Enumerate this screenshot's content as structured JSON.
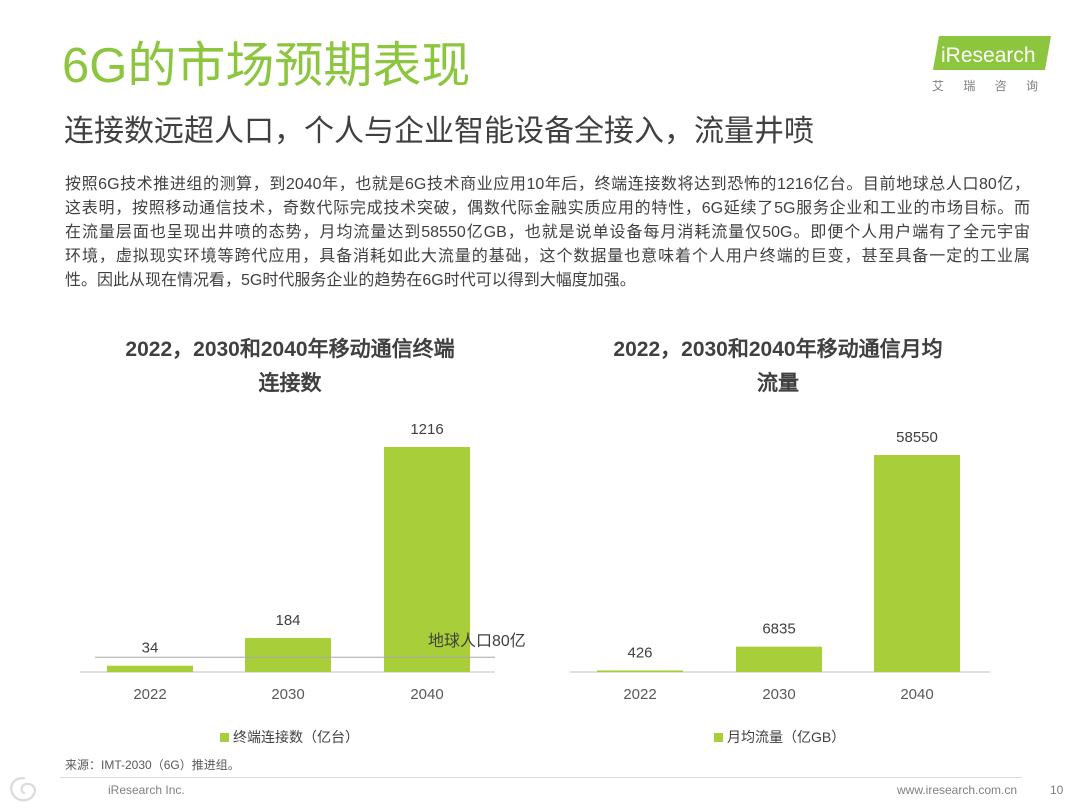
{
  "header": {
    "title": "6G的市场预期表现",
    "subtitle": "连接数远超人口，个人与企业智能设备全接入，流量井喷"
  },
  "logo": {
    "brand": "iResearch",
    "brand_cn": "艾 瑞 咨 询"
  },
  "intro": {
    "lines": [
      "按照6G技术推进组的测算，到2040年，也就是6G技术商业应用10年后，终端连接数将达到恐怖的1216亿台。目前地球总人口80亿，",
      "这表明，按照移动通信技术，奇数代际完成技术突破，偶数代际金融实质应用的特性，6G延续了5G服务企业和工业的市场目标。而",
      "在流量层面也呈现出井喷的态势，月均流量达到58550亿GB，也就是说单设备每月消耗流量仅50G。即便个人用户端有了全元宇宙",
      "环境，虚拟现实环境等跨代应用，具备消耗如此大流量的基础，这个数据量也意味着个人用户终端的巨变，甚至具备一定的工业属",
      "性。因此从现在情况看，5G时代服务企业的趋势在6G时代可以得到大幅度加强。"
    ]
  },
  "colors": {
    "title": "#8cc63e",
    "bar": "#a8cf3a",
    "axis": "#bfbfbf",
    "reference_line": "#a6a6a6",
    "logo": "#8cc63e"
  },
  "chart_data": [
    {
      "type": "bar",
      "title_lines": [
        "2022，2030和2040年移动通信终端",
        "连接数"
      ],
      "categories": [
        "2022",
        "2030",
        "2040"
      ],
      "values": [
        34,
        184,
        1216
      ],
      "series_name": "终端连接数（亿台）",
      "reference_line": {
        "value": 80,
        "label": "地球人口80亿"
      },
      "legend_position": "bottom",
      "grid": false
    },
    {
      "type": "bar",
      "title_lines": [
        "2022，2030和2040年移动通信月均",
        "流量"
      ],
      "categories": [
        "2022",
        "2030",
        "2040"
      ],
      "values": [
        426,
        6835,
        58550
      ],
      "series_name": "月均流量（亿GB）",
      "legend_position": "bottom",
      "grid": false
    }
  ],
  "source": "来源：IMT-2030（6G）推进组。",
  "footer": {
    "copyright": "iResearch Inc.",
    "website": "www.iresearch.com.cn",
    "page_number": "10"
  },
  "icons": {
    "watermark": "watermark-swirl-icon"
  }
}
